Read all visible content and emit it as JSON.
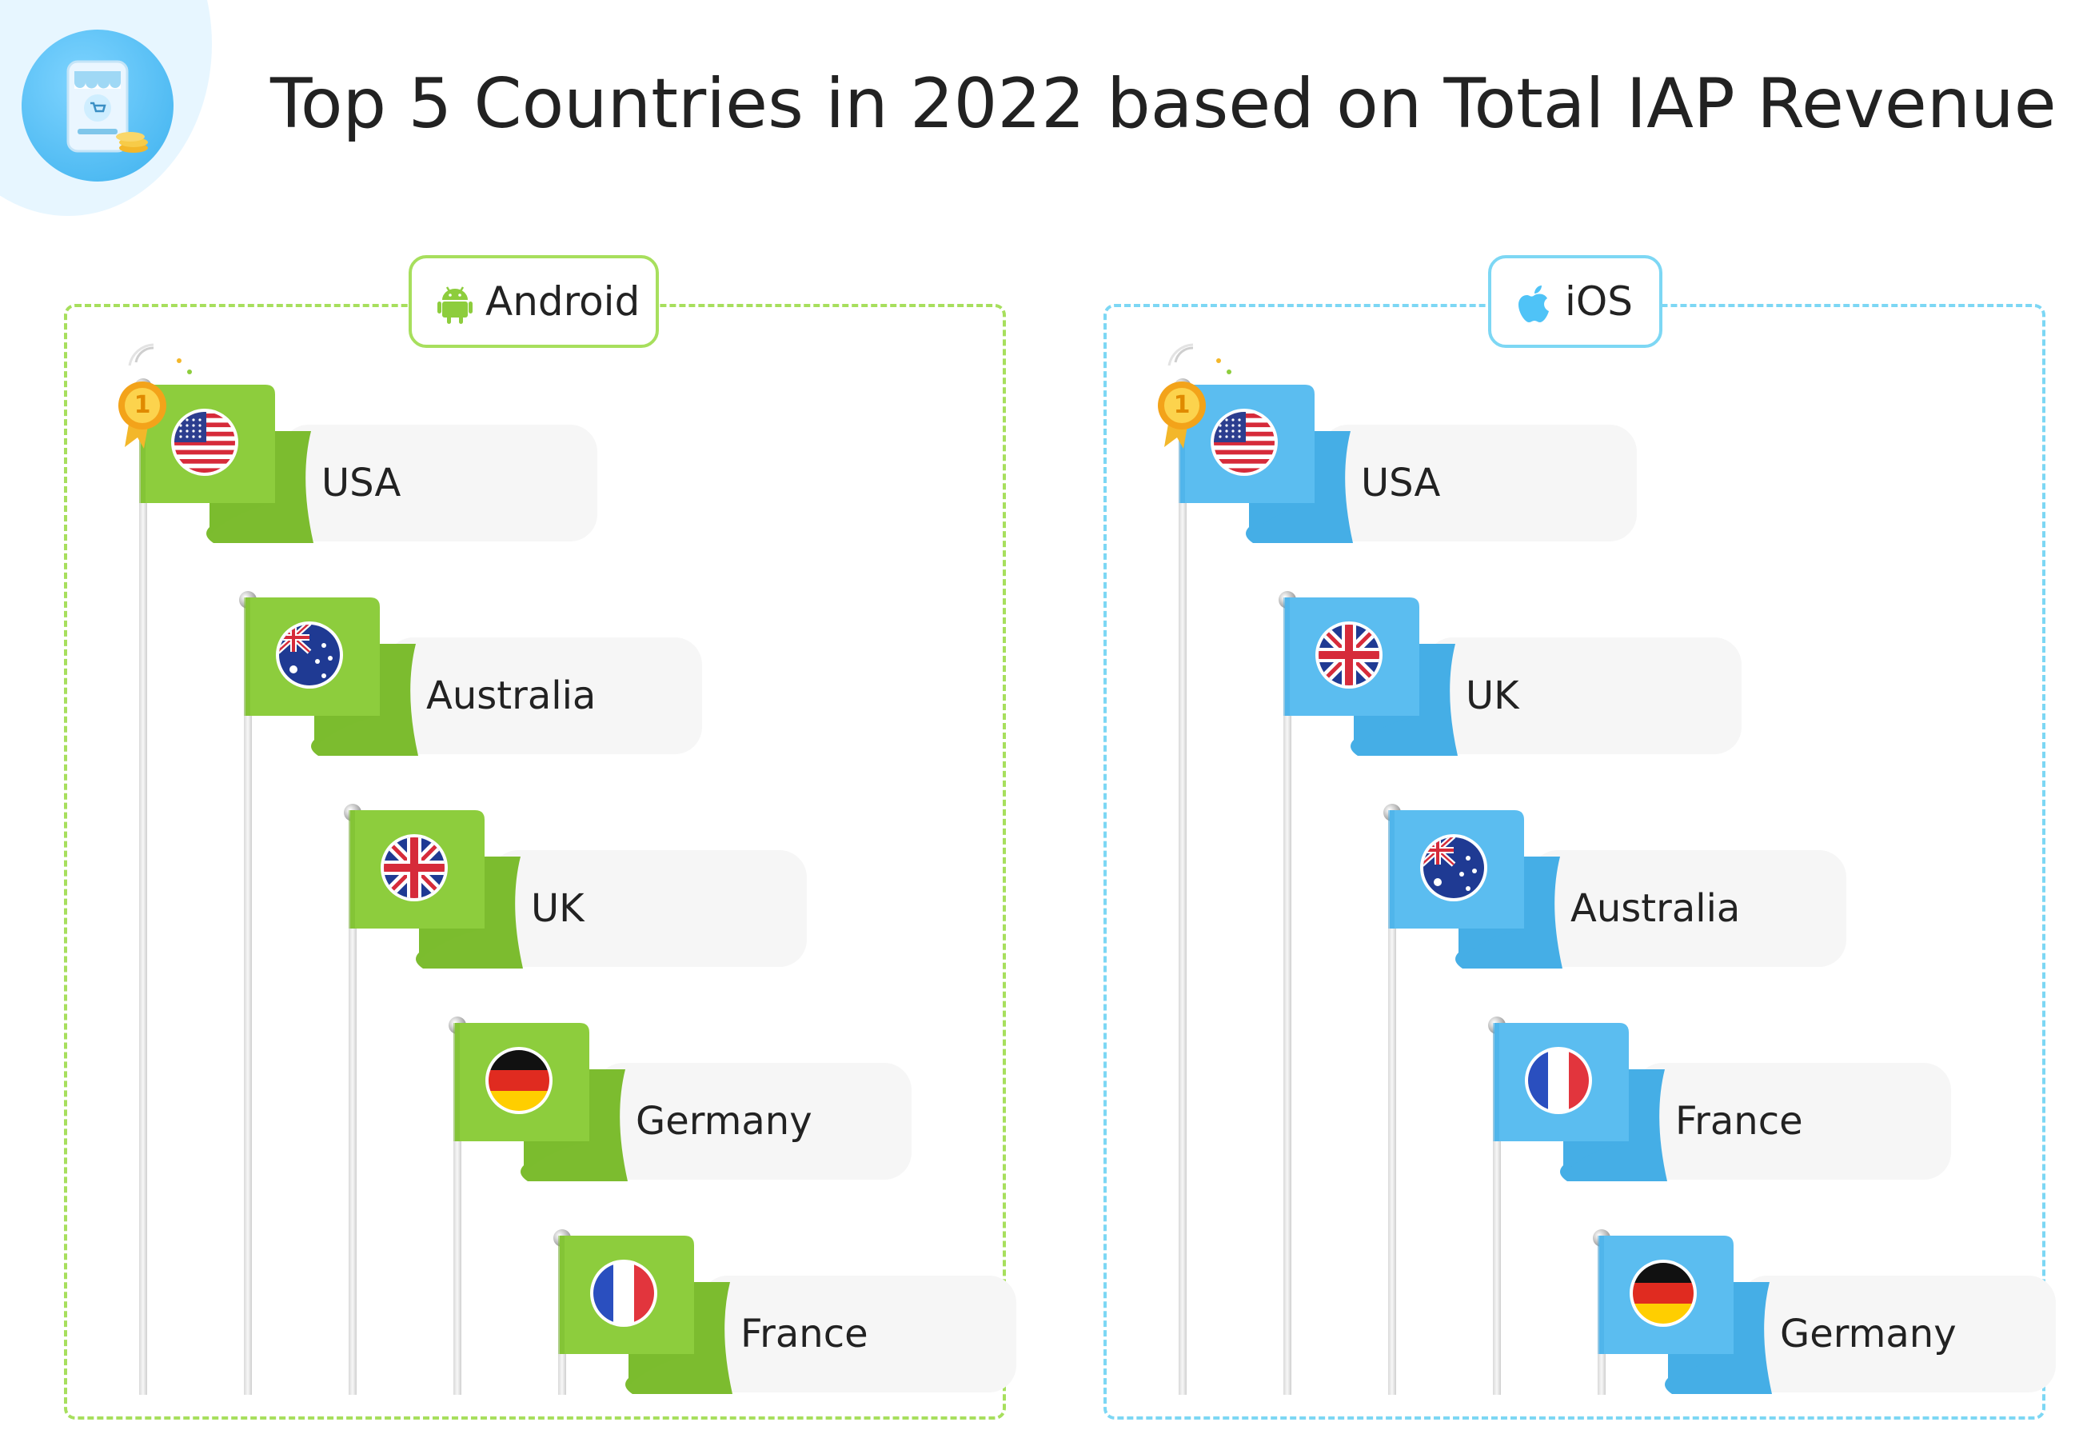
{
  "title": "Top 5 Countries in 2022 based on Total IAP Revenue",
  "colors": {
    "android_accent": "#a7df5d",
    "android_flag": "#8dcd3d",
    "ios_accent": "#7dd7f4",
    "ios_flag": "#5bbdf0",
    "card_bg": "#f6f6f6"
  },
  "header_icon": "mobile-shop-icon",
  "panels": [
    {
      "platform": "Android",
      "icon": "android-icon",
      "rank_badge": "1",
      "ranking": [
        "USA",
        "Australia",
        "UK",
        "Germany",
        "France"
      ]
    },
    {
      "platform": "iOS",
      "icon": "apple-icon",
      "rank_badge": "1",
      "ranking": [
        "USA",
        "UK",
        "Australia",
        "France",
        "Germany"
      ]
    }
  ]
}
